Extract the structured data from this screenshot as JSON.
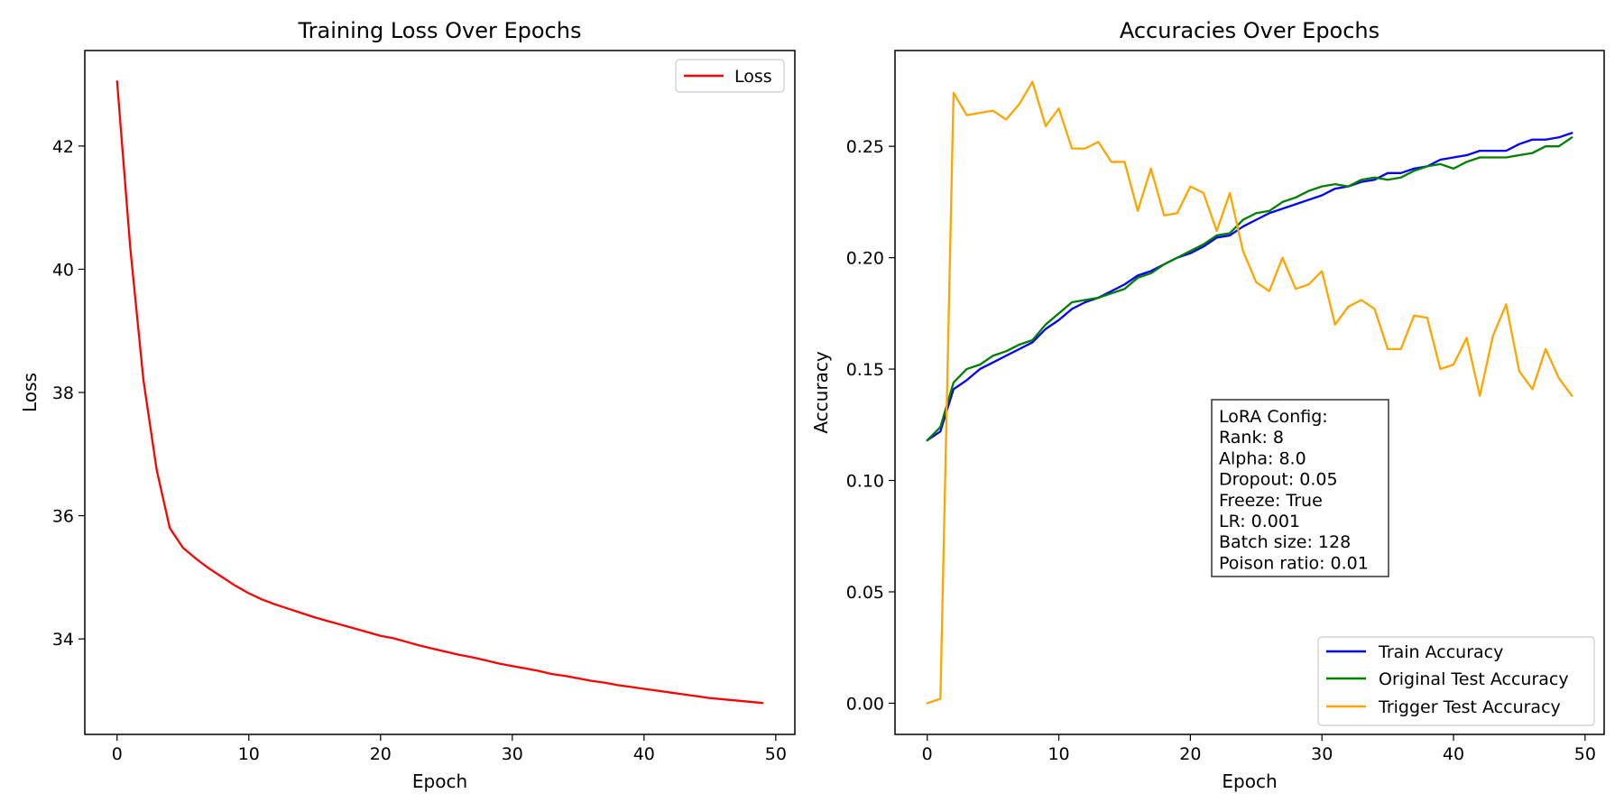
{
  "chart_data": [
    {
      "type": "line",
      "title": "Training Loss Over Epochs",
      "xlabel": "Epoch",
      "ylabel": "Loss",
      "xlim": [
        -2.45,
        51.45
      ],
      "ylim": [
        32.45,
        43.55
      ],
      "xticks": [
        0,
        10,
        20,
        30,
        40,
        50
      ],
      "yticks": [
        34,
        36,
        38,
        40,
        42
      ],
      "grid": false,
      "legend_position": "top-right",
      "series": [
        {
          "name": "Loss",
          "color": "#ff0000",
          "x": [
            0,
            1,
            2,
            3,
            4,
            5,
            6,
            7,
            8,
            9,
            10,
            11,
            12,
            13,
            14,
            15,
            16,
            17,
            18,
            19,
            20,
            21,
            22,
            23,
            24,
            25,
            26,
            27,
            28,
            29,
            30,
            31,
            32,
            33,
            34,
            35,
            36,
            37,
            38,
            39,
            40,
            41,
            42,
            43,
            44,
            45,
            46,
            47,
            48,
            49
          ],
          "values": [
            43.05,
            40.35,
            38.2,
            36.75,
            35.8,
            35.48,
            35.3,
            35.14,
            35.0,
            34.86,
            34.74,
            34.64,
            34.56,
            34.49,
            34.42,
            34.35,
            34.29,
            34.23,
            34.17,
            34.11,
            34.05,
            34.01,
            33.95,
            33.89,
            33.84,
            33.79,
            33.74,
            33.7,
            33.65,
            33.6,
            33.56,
            33.52,
            33.48,
            33.43,
            33.4,
            33.36,
            33.32,
            33.29,
            33.25,
            33.22,
            33.19,
            33.16,
            33.13,
            33.1,
            33.07,
            33.04,
            33.02,
            33.0,
            32.98,
            32.96
          ]
        }
      ]
    },
    {
      "type": "line",
      "title": "Accuracies Over Epochs",
      "xlabel": "Epoch",
      "ylabel": "Accuracy",
      "xlim": [
        -2.45,
        51.45
      ],
      "ylim": [
        -0.014,
        0.293
      ],
      "xticks": [
        0,
        10,
        20,
        30,
        40,
        50
      ],
      "yticks": [
        0.0,
        0.05,
        0.1,
        0.15,
        0.2,
        0.25
      ],
      "yticklabels": [
        "0.00",
        "0.05",
        "0.10",
        "0.15",
        "0.20",
        "0.25"
      ],
      "grid": false,
      "legend_position": "lower-right",
      "annotation": {
        "lines": [
          "LoRA Config:",
          "Rank: 8",
          "Alpha: 8.0",
          "Dropout: 0.05",
          "Freeze: True",
          "LR: 0.001",
          "Batch size: 128",
          "Poison ratio: 0.01"
        ]
      },
      "series": [
        {
          "name": "Train Accuracy",
          "color": "#0000ff",
          "x": [
            0,
            1,
            2,
            3,
            4,
            5,
            6,
            7,
            8,
            9,
            10,
            11,
            12,
            13,
            14,
            15,
            16,
            17,
            18,
            19,
            20,
            21,
            22,
            23,
            24,
            25,
            26,
            27,
            28,
            29,
            30,
            31,
            32,
            33,
            34,
            35,
            36,
            37,
            38,
            39,
            40,
            41,
            42,
            43,
            44,
            45,
            46,
            47,
            48,
            49
          ],
          "values": [
            0.118,
            0.122,
            0.141,
            0.145,
            0.15,
            0.153,
            0.156,
            0.159,
            0.162,
            0.168,
            0.172,
            0.177,
            0.18,
            0.182,
            0.185,
            0.188,
            0.192,
            0.194,
            0.197,
            0.2,
            0.202,
            0.205,
            0.209,
            0.21,
            0.214,
            0.217,
            0.22,
            0.222,
            0.224,
            0.226,
            0.228,
            0.231,
            0.232,
            0.234,
            0.235,
            0.238,
            0.238,
            0.24,
            0.241,
            0.244,
            0.245,
            0.246,
            0.248,
            0.248,
            0.248,
            0.251,
            0.253,
            0.253,
            0.254,
            0.256
          ]
        },
        {
          "name": "Original Test Accuracy",
          "color": "#008000",
          "x": [
            0,
            1,
            2,
            3,
            4,
            5,
            6,
            7,
            8,
            9,
            10,
            11,
            12,
            13,
            14,
            15,
            16,
            17,
            18,
            19,
            20,
            21,
            22,
            23,
            24,
            25,
            26,
            27,
            28,
            29,
            30,
            31,
            32,
            33,
            34,
            35,
            36,
            37,
            38,
            39,
            40,
            41,
            42,
            43,
            44,
            45,
            46,
            47,
            48,
            49
          ],
          "values": [
            0.118,
            0.124,
            0.144,
            0.15,
            0.152,
            0.156,
            0.158,
            0.161,
            0.163,
            0.17,
            0.175,
            0.18,
            0.181,
            0.182,
            0.184,
            0.186,
            0.191,
            0.193,
            0.197,
            0.2,
            0.203,
            0.206,
            0.21,
            0.211,
            0.217,
            0.22,
            0.221,
            0.225,
            0.227,
            0.23,
            0.232,
            0.233,
            0.232,
            0.235,
            0.236,
            0.235,
            0.236,
            0.239,
            0.241,
            0.242,
            0.24,
            0.243,
            0.245,
            0.245,
            0.245,
            0.246,
            0.247,
            0.25,
            0.25,
            0.254
          ]
        },
        {
          "name": "Trigger Test Accuracy",
          "color": "#ffa500",
          "x": [
            0,
            1,
            2,
            3,
            4,
            5,
            6,
            7,
            8,
            9,
            10,
            11,
            12,
            13,
            14,
            15,
            16,
            17,
            18,
            19,
            20,
            21,
            22,
            23,
            24,
            25,
            26,
            27,
            28,
            29,
            30,
            31,
            32,
            33,
            34,
            35,
            36,
            37,
            38,
            39,
            40,
            41,
            42,
            43,
            44,
            45,
            46,
            47,
            48,
            49
          ],
          "values": [
            0.0,
            0.002,
            0.274,
            0.264,
            0.265,
            0.266,
            0.262,
            0.269,
            0.279,
            0.259,
            0.267,
            0.249,
            0.249,
            0.252,
            0.243,
            0.243,
            0.221,
            0.24,
            0.219,
            0.22,
            0.232,
            0.229,
            0.212,
            0.229,
            0.203,
            0.189,
            0.185,
            0.2,
            0.186,
            0.188,
            0.194,
            0.17,
            0.178,
            0.181,
            0.177,
            0.159,
            0.159,
            0.174,
            0.173,
            0.15,
            0.152,
            0.164,
            0.138,
            0.165,
            0.179,
            0.149,
            0.141,
            0.159,
            0.146,
            0.138
          ]
        }
      ]
    }
  ]
}
